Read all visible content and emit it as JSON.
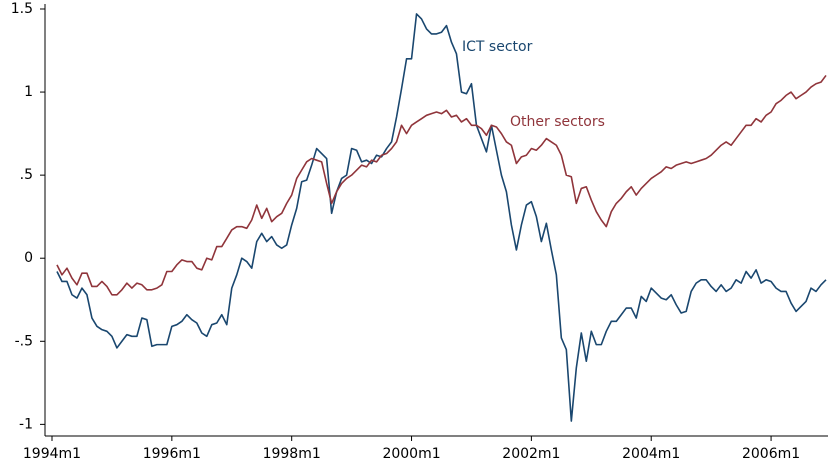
{
  "chart_data": {
    "type": "line",
    "x": [
      409,
      410,
      411,
      412,
      413,
      414,
      415,
      416,
      417,
      418,
      419,
      420,
      421,
      422,
      423,
      424,
      425,
      426,
      427,
      428,
      429,
      430,
      431,
      432,
      433,
      434,
      435,
      436,
      437,
      438,
      439,
      440,
      441,
      442,
      443,
      444,
      445,
      446,
      447,
      448,
      449,
      450,
      451,
      452,
      453,
      454,
      455,
      456,
      457,
      458,
      459,
      460,
      461,
      462,
      463,
      464,
      465,
      466,
      467,
      468,
      469,
      470,
      471,
      472,
      473,
      474,
      475,
      476,
      477,
      478,
      479,
      480,
      481,
      482,
      483,
      484,
      485,
      486,
      487,
      488,
      489,
      490,
      491,
      492,
      493,
      494,
      495,
      496,
      497,
      498,
      499,
      500,
      501,
      502,
      503,
      504,
      505,
      506,
      507,
      508,
      509,
      510,
      511,
      512,
      513,
      514,
      515,
      516,
      517,
      518,
      519,
      520,
      521,
      522,
      523,
      524,
      525,
      526,
      527,
      528,
      529,
      530,
      531,
      532,
      533,
      534,
      535,
      536,
      537,
      538,
      539,
      540,
      541,
      542,
      543,
      544,
      545,
      546,
      547,
      548,
      549,
      550,
      551,
      552,
      553,
      554,
      555,
      556,
      557,
      558,
      559,
      560,
      561,
      562,
      563
    ],
    "series": [
      {
        "name": "ICT sector",
        "color": "#1a476f",
        "values": [
          -0.08,
          -0.14,
          -0.14,
          -0.22,
          -0.24,
          -0.18,
          -0.22,
          -0.36,
          -0.41,
          -0.43,
          -0.44,
          -0.47,
          -0.54,
          -0.5,
          -0.46,
          -0.47,
          -0.47,
          -0.36,
          -0.37,
          -0.53,
          -0.52,
          -0.52,
          -0.52,
          -0.41,
          -0.4,
          -0.38,
          -0.34,
          -0.37,
          -0.39,
          -0.45,
          -0.47,
          -0.4,
          -0.39,
          -0.34,
          -0.4,
          -0.18,
          -0.1,
          0.0,
          -0.02,
          -0.06,
          0.1,
          0.15,
          0.1,
          0.13,
          0.08,
          0.06,
          0.08,
          0.2,
          0.3,
          0.46,
          0.47,
          0.56,
          0.66,
          0.63,
          0.6,
          0.27,
          0.4,
          0.48,
          0.5,
          0.66,
          0.65,
          0.58,
          0.59,
          0.57,
          0.62,
          0.61,
          0.66,
          0.7,
          0.85,
          1.02,
          1.2,
          1.2,
          1.47,
          1.44,
          1.38,
          1.35,
          1.35,
          1.36,
          1.4,
          1.3,
          1.23,
          1.0,
          0.99,
          1.05,
          0.8,
          0.72,
          0.64,
          0.8,
          0.65,
          0.5,
          0.4,
          0.2,
          0.05,
          0.2,
          0.32,
          0.34,
          0.25,
          0.1,
          0.21,
          0.05,
          -0.1,
          -0.48,
          -0.55,
          -0.98,
          -0.66,
          -0.45,
          -0.62,
          -0.44,
          -0.52,
          -0.52,
          -0.44,
          -0.38,
          -0.38,
          -0.34,
          -0.3,
          -0.3,
          -0.36,
          -0.23,
          -0.26,
          -0.18,
          -0.21,
          -0.24,
          -0.25,
          -0.22,
          -0.28,
          -0.33,
          -0.32,
          -0.2,
          -0.15,
          -0.13,
          -0.13,
          -0.17,
          -0.2,
          -0.16,
          -0.2,
          -0.18,
          -0.13,
          -0.15,
          -0.08,
          -0.12,
          -0.07,
          -0.15,
          -0.13,
          -0.14,
          -0.18,
          -0.2,
          -0.2,
          -0.27,
          -0.32,
          -0.29,
          -0.26,
          -0.18,
          -0.2,
          -0.16,
          -0.13
        ]
      },
      {
        "name": "Other sectors",
        "color": "#90353b",
        "values": [
          -0.04,
          -0.1,
          -0.06,
          -0.12,
          -0.16,
          -0.09,
          -0.09,
          -0.17,
          -0.17,
          -0.14,
          -0.17,
          -0.22,
          -0.22,
          -0.19,
          -0.15,
          -0.18,
          -0.15,
          -0.16,
          -0.19,
          -0.19,
          -0.18,
          -0.16,
          -0.08,
          -0.08,
          -0.04,
          -0.01,
          -0.02,
          -0.02,
          -0.06,
          -0.07,
          0.0,
          -0.01,
          0.07,
          0.07,
          0.12,
          0.17,
          0.19,
          0.19,
          0.18,
          0.23,
          0.32,
          0.24,
          0.3,
          0.22,
          0.25,
          0.27,
          0.33,
          0.38,
          0.48,
          0.53,
          0.58,
          0.6,
          0.59,
          0.58,
          0.45,
          0.33,
          0.4,
          0.45,
          0.48,
          0.5,
          0.53,
          0.56,
          0.55,
          0.59,
          0.58,
          0.62,
          0.63,
          0.66,
          0.7,
          0.8,
          0.75,
          0.8,
          0.82,
          0.84,
          0.86,
          0.87,
          0.88,
          0.87,
          0.89,
          0.85,
          0.86,
          0.82,
          0.84,
          0.8,
          0.8,
          0.78,
          0.74,
          0.8,
          0.79,
          0.75,
          0.7,
          0.68,
          0.57,
          0.61,
          0.62,
          0.66,
          0.65,
          0.68,
          0.72,
          0.7,
          0.68,
          0.62,
          0.5,
          0.49,
          0.33,
          0.42,
          0.43,
          0.35,
          0.28,
          0.23,
          0.19,
          0.28,
          0.33,
          0.36,
          0.4,
          0.43,
          0.38,
          0.42,
          0.45,
          0.48,
          0.5,
          0.52,
          0.55,
          0.54,
          0.56,
          0.57,
          0.58,
          0.57,
          0.58,
          0.59,
          0.6,
          0.62,
          0.65,
          0.68,
          0.7,
          0.68,
          0.72,
          0.76,
          0.8,
          0.8,
          0.84,
          0.82,
          0.86,
          0.88,
          0.93,
          0.95,
          0.98,
          1.0,
          0.96,
          0.98,
          1.0,
          1.03,
          1.05,
          1.06,
          1.1
        ]
      }
    ],
    "xlim": [
      406.6,
      563.4
    ],
    "xticks": [
      {
        "value": 408,
        "label": "1994m1"
      },
      {
        "value": 432,
        "label": "1996m1"
      },
      {
        "value": 456,
        "label": "1998m1"
      },
      {
        "value": 480,
        "label": "2000m1"
      },
      {
        "value": 504,
        "label": "2002m1"
      },
      {
        "value": 528,
        "label": "2004m1"
      },
      {
        "value": 552,
        "label": "2006m1"
      }
    ],
    "ylim": [
      -1.07,
      1.53
    ],
    "yticks": [
      -1,
      {
        "value": -0.5,
        "label": "-.5"
      },
      0,
      {
        "value": 0.5,
        "label": ".5"
      },
      1,
      1.5
    ],
    "grid": false
  }
}
